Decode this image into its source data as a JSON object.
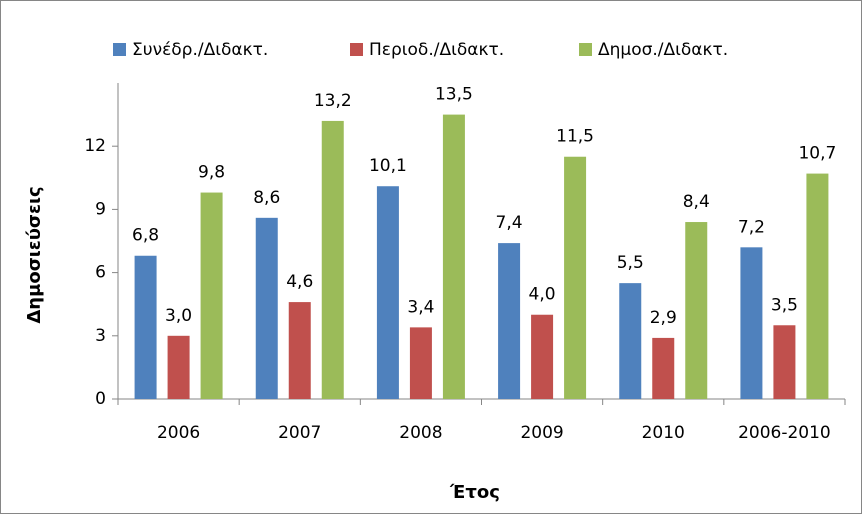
{
  "chart_data": {
    "type": "bar",
    "categories": [
      "2006",
      "2007",
      "2008",
      "2009",
      "2010",
      "2006-2010"
    ],
    "series": [
      {
        "name": "Συνέδρ./Διδακτ.",
        "color": "#4f81bd",
        "values": [
          6.8,
          8.6,
          10.1,
          7.4,
          5.5,
          7.2
        ],
        "value_labels": [
          "6,8",
          "8,6",
          "10,1",
          "7,4",
          "5,5",
          "7,2"
        ]
      },
      {
        "name": "Περιοδ./Διδακτ.",
        "color": "#c0504d",
        "values": [
          3.0,
          4.6,
          3.4,
          4.0,
          2.9,
          3.5
        ],
        "value_labels": [
          "3,0",
          "4,6",
          "3,4",
          "4,0",
          "2,9",
          "3,5"
        ]
      },
      {
        "name": "Δημοσ./Διδακτ.",
        "color": "#9bbb59",
        "values": [
          9.8,
          13.2,
          13.5,
          11.5,
          8.4,
          10.7
        ],
        "value_labels": [
          "9,8",
          "13,2",
          "13,5",
          "11,5",
          "8,4",
          "10,7"
        ]
      }
    ],
    "y_label": "Δημοσιεύσεις",
    "x_label": "Έτος",
    "ylim": [
      0,
      15
    ],
    "yticks": [
      0,
      3,
      6,
      9,
      12
    ],
    "grid": false,
    "legend": "top"
  }
}
